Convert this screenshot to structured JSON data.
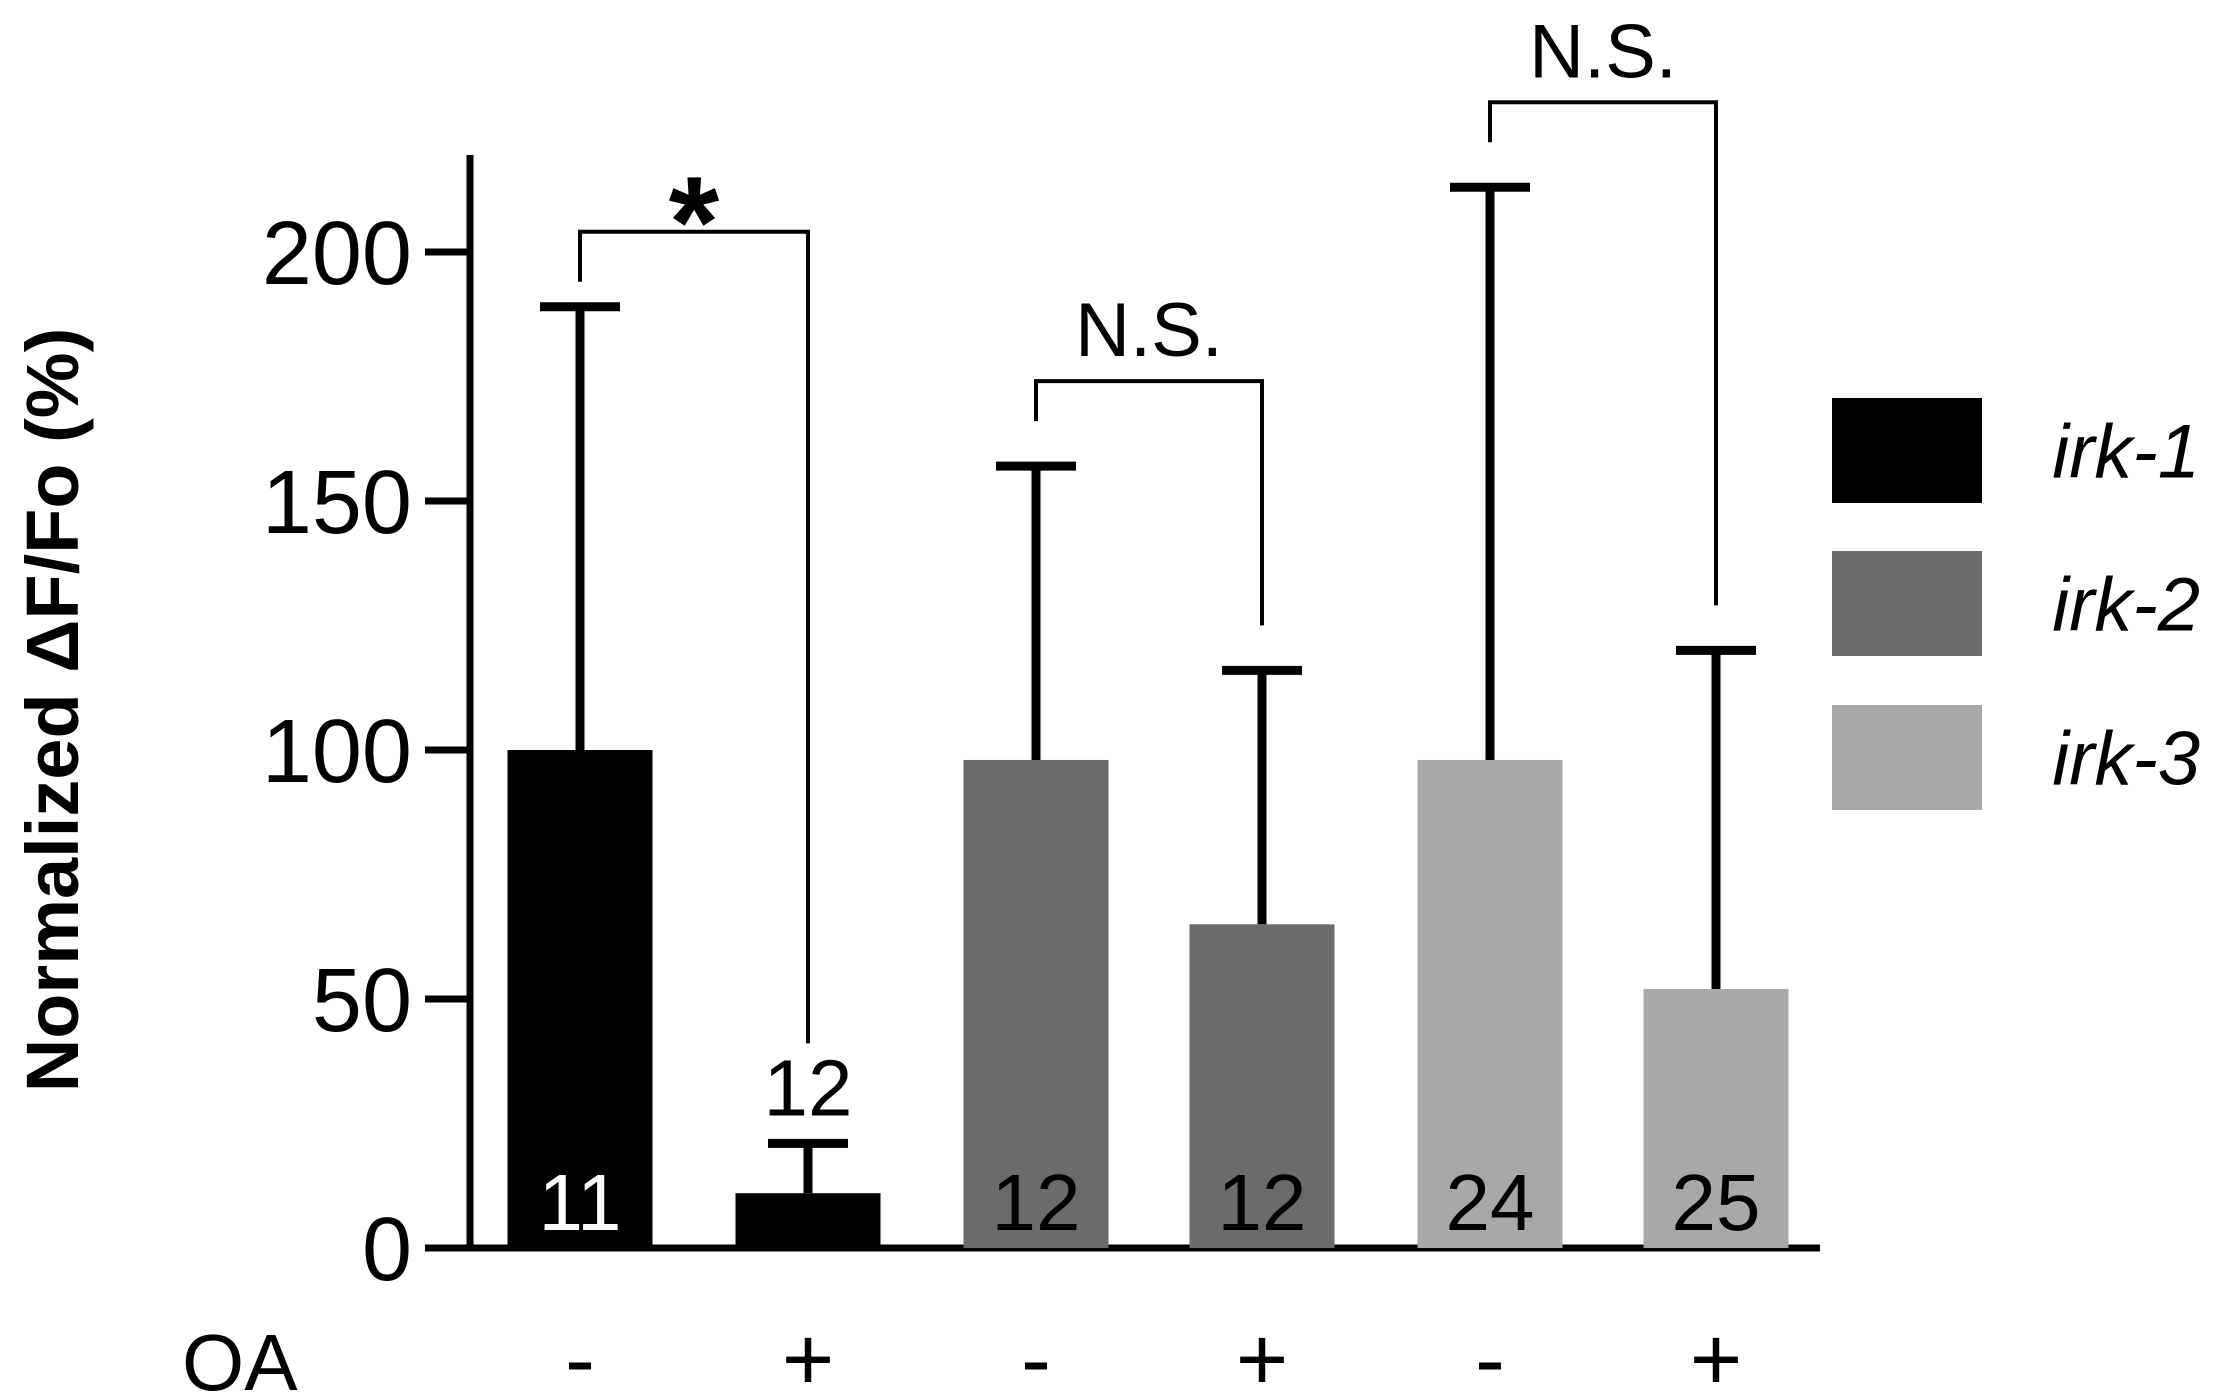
{
  "chart_data": {
    "type": "bar",
    "title": "",
    "xlabel": "",
    "ylabel": "Normalized ΔF/Fo (%)",
    "ylim": [
      0,
      220
    ],
    "yticks": [
      "0",
      "50",
      "100",
      "150",
      "200"
    ],
    "row_label": "OA",
    "bars": [
      {
        "group": "irk-1",
        "oa": "-",
        "value": 100,
        "error": 89,
        "n": "11"
      },
      {
        "group": "irk-1",
        "oa": "+",
        "value": 11,
        "error": 10,
        "n": "12"
      },
      {
        "group": "irk-2",
        "oa": "-",
        "value": 98,
        "error": 59,
        "n": "12"
      },
      {
        "group": "irk-2",
        "oa": "+",
        "value": 65,
        "error": 51,
        "n": "12"
      },
      {
        "group": "irk-3",
        "oa": "-",
        "value": 98,
        "error": 115,
        "n": "24"
      },
      {
        "group": "irk-3",
        "oa": "+",
        "value": 52,
        "error": 68,
        "n": "25"
      }
    ],
    "legend": [
      {
        "name": "irk-1",
        "color": "#000000"
      },
      {
        "name": "irk-2",
        "color": "#6b6b6b"
      },
      {
        "name": "irk-3",
        "color": "#a8a8a8"
      }
    ],
    "significance": [
      {
        "from_bar": 0,
        "to_bar": 1,
        "label": "*"
      },
      {
        "from_bar": 2,
        "to_bar": 3,
        "label": "N.S."
      },
      {
        "from_bar": 4,
        "to_bar": 5,
        "label": "N.S."
      }
    ]
  }
}
